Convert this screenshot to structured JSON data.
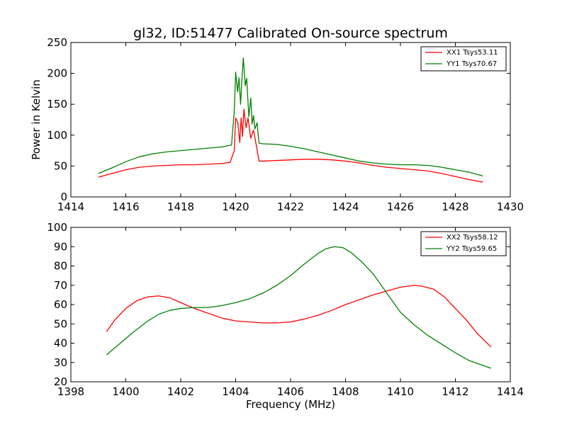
{
  "figure_title": "gl32, ID:51477 Calibrated On-source spectrum",
  "chart_data": [
    {
      "type": "line",
      "title": "gl32, ID:51477 Calibrated On-source spectrum",
      "xlabel": "",
      "ylabel": "Power in Kelvin",
      "xlim": [
        1414,
        1430
      ],
      "ylim": [
        0,
        250
      ],
      "xticks": [
        1414,
        1416,
        1418,
        1420,
        1422,
        1424,
        1426,
        1428,
        1430
      ],
      "yticks": [
        0,
        50,
        100,
        150,
        200,
        250
      ],
      "grid": false,
      "legend_position": "top-right",
      "series": [
        {
          "name": "XX1 Tsys53.11",
          "color": "#ff0000",
          "x": [
            1415.0,
            1415.5,
            1416.0,
            1416.5,
            1417.0,
            1417.5,
            1418.0,
            1418.5,
            1419.0,
            1419.5,
            1419.8,
            1419.95,
            1420.0,
            1420.08,
            1420.15,
            1420.2,
            1420.25,
            1420.3,
            1420.38,
            1420.45,
            1420.55,
            1420.65,
            1420.75,
            1420.85,
            1421.0,
            1421.5,
            1422.0,
            1422.5,
            1423.0,
            1423.5,
            1424.0,
            1424.5,
            1425.0,
            1425.5,
            1426.0,
            1426.5,
            1427.0,
            1427.5,
            1428.0,
            1428.5,
            1429.0
          ],
          "y": [
            32,
            38,
            44,
            48,
            50,
            51,
            52,
            52,
            53,
            54,
            56,
            75,
            128,
            120,
            88,
            128,
            98,
            142,
            112,
            128,
            95,
            108,
            84,
            58,
            58,
            59,
            60,
            61,
            61,
            60,
            58,
            55,
            51,
            48,
            46,
            44,
            42,
            38,
            33,
            28,
            24
          ]
        },
        {
          "name": "YY1 Tsys70.67",
          "color": "#008000",
          "x": [
            1415.0,
            1415.5,
            1416.0,
            1416.5,
            1417.0,
            1417.5,
            1418.0,
            1418.5,
            1419.0,
            1419.5,
            1419.85,
            1419.95,
            1420.0,
            1420.07,
            1420.12,
            1420.18,
            1420.22,
            1420.28,
            1420.35,
            1420.4,
            1420.48,
            1420.55,
            1420.6,
            1420.65,
            1420.7,
            1420.78,
            1420.85,
            1421.0,
            1421.5,
            1422.0,
            1422.5,
            1423.0,
            1423.5,
            1424.0,
            1424.5,
            1425.0,
            1425.5,
            1426.0,
            1426.5,
            1427.0,
            1427.5,
            1428.0,
            1428.5,
            1429.0
          ],
          "y": [
            38,
            47,
            57,
            65,
            70,
            73,
            75,
            77,
            79,
            81,
            84,
            140,
            202,
            170,
            193,
            150,
            185,
            225,
            180,
            192,
            130,
            160,
            118,
            132,
            110,
            120,
            87,
            86,
            85,
            82,
            78,
            73,
            68,
            63,
            58,
            55,
            53,
            52,
            52,
            51,
            48,
            44,
            40,
            34
          ]
        }
      ]
    },
    {
      "type": "line",
      "title": "",
      "xlabel": "Frequency (MHz)",
      "ylabel": "",
      "xlim": [
        1398,
        1414
      ],
      "ylim": [
        20,
        100
      ],
      "xticks": [
        1398,
        1400,
        1402,
        1404,
        1406,
        1408,
        1410,
        1412,
        1414
      ],
      "yticks": [
        20,
        30,
        40,
        50,
        60,
        70,
        80,
        90,
        100
      ],
      "grid": false,
      "legend_position": "top-right",
      "series": [
        {
          "name": "XX2 Tsys58.12",
          "color": "#ff0000",
          "x": [
            1399.3,
            1399.6,
            1400.0,
            1400.4,
            1400.8,
            1401.2,
            1401.6,
            1402.0,
            1402.5,
            1403.0,
            1403.5,
            1404.0,
            1404.5,
            1405.0,
            1405.5,
            1406.0,
            1406.5,
            1407.0,
            1407.5,
            1408.0,
            1408.5,
            1409.0,
            1409.5,
            1410.0,
            1410.5,
            1410.8,
            1411.2,
            1411.6,
            1412.0,
            1412.4,
            1412.8,
            1413.3
          ],
          "y": [
            46,
            52,
            58,
            62,
            64,
            64.5,
            63.5,
            61,
            58,
            55.5,
            53,
            51.5,
            51,
            50.5,
            50.5,
            51,
            52.5,
            54.5,
            57,
            60,
            62.5,
            65,
            67,
            69,
            70,
            69.5,
            68,
            64,
            58,
            52,
            45,
            38
          ]
        },
        {
          "name": "YY2 Tsys59.65",
          "color": "#008000",
          "x": [
            1399.3,
            1399.8,
            1400.3,
            1400.8,
            1401.2,
            1401.6,
            1402.0,
            1402.5,
            1403.0,
            1403.5,
            1404.0,
            1404.5,
            1405.0,
            1405.5,
            1406.0,
            1406.5,
            1407.0,
            1407.3,
            1407.6,
            1407.9,
            1408.2,
            1408.6,
            1409.0,
            1409.5,
            1410.0,
            1410.5,
            1411.0,
            1411.5,
            1412.0,
            1412.5,
            1413.3
          ],
          "y": [
            34,
            40,
            46,
            51.5,
            55,
            57,
            58,
            58.5,
            58.5,
            59.5,
            61,
            63,
            66,
            70,
            75,
            81,
            86.5,
            89,
            90,
            89.5,
            87,
            82,
            76,
            66,
            56,
            49.5,
            44,
            39.5,
            35,
            31,
            27
          ]
        }
      ]
    }
  ]
}
